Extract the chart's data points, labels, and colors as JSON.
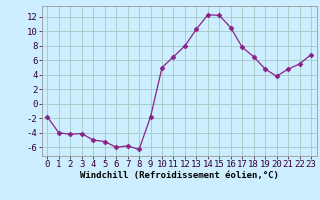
{
  "x": [
    0,
    1,
    2,
    3,
    4,
    5,
    6,
    7,
    8,
    9,
    10,
    11,
    12,
    13,
    14,
    15,
    16,
    17,
    18,
    19,
    20,
    21,
    22,
    23
  ],
  "y": [
    -1.8,
    -4.0,
    -4.2,
    -4.1,
    -5.0,
    -5.2,
    -6.0,
    -5.8,
    -6.3,
    -1.8,
    5.0,
    6.5,
    8.0,
    10.3,
    12.3,
    12.2,
    10.5,
    7.8,
    6.5,
    4.8,
    3.8,
    4.8,
    5.5,
    6.8
  ],
  "line_color": "#882288",
  "marker": "D",
  "markersize": 2.5,
  "linewidth": 0.9,
  "bg_color": "#cceeff",
  "grid_color": "#aacccc",
  "xlabel": "Windchill (Refroidissement éolien,°C)",
  "xlabel_fontsize": 6.5,
  "xtick_labels": [
    "0",
    "1",
    "2",
    "3",
    "4",
    "5",
    "6",
    "7",
    "8",
    "9",
    "10",
    "11",
    "12",
    "13",
    "14",
    "15",
    "16",
    "17",
    "18",
    "19",
    "20",
    "21",
    "22",
    "23"
  ],
  "ytick_values": [
    -6,
    -4,
    -2,
    0,
    2,
    4,
    6,
    8,
    10,
    12
  ],
  "ylim": [
    -7.2,
    13.5
  ],
  "xlim": [
    -0.5,
    23.5
  ],
  "tick_fontsize": 6.5
}
